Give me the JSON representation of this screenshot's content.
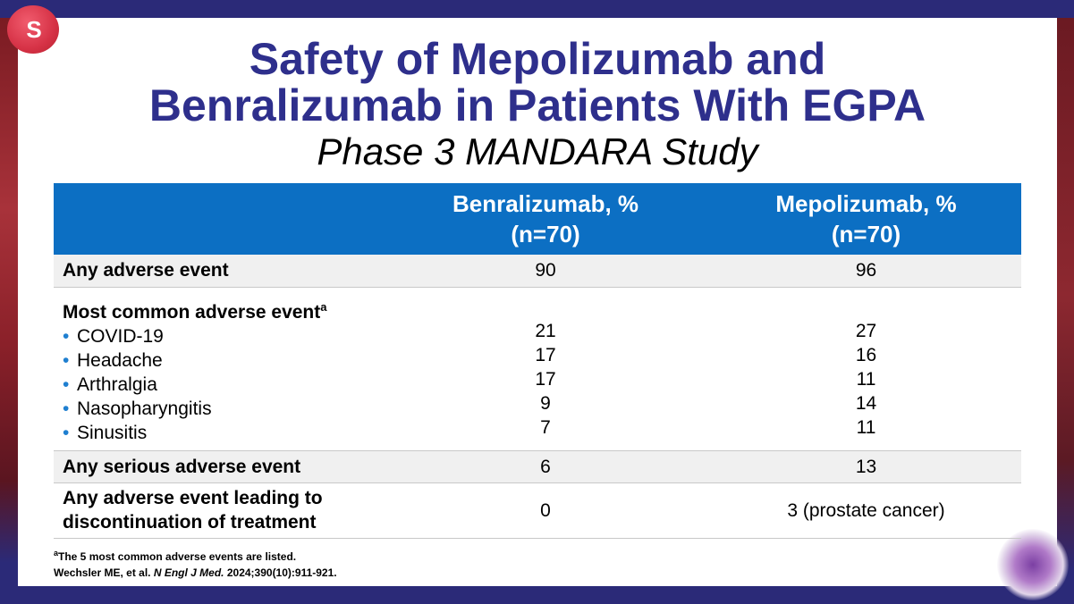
{
  "slide": {
    "title_line1": "Safety of Mepolizumab and",
    "title_line2": "Benralizumab in Patients With EGPA",
    "subtitle": "Phase 3 MANDARA Study",
    "logo_icon": "logo-s-icon",
    "decor_icon": "eosinophil-cell-icon"
  },
  "table": {
    "headers": {
      "benralizumab_line1": "Benralizumab, %",
      "benralizumab_line2": "(n=70)",
      "mepolizumab_line1": "Mepolizumab, %",
      "mepolizumab_line2": "(n=70)"
    },
    "any_adverse": {
      "label": "Any adverse event",
      "benralizumab": "90",
      "mepolizumab": "96"
    },
    "most_common": {
      "label": "Most common adverse event",
      "label_sup": "a",
      "items": [
        {
          "label": "COVID-19",
          "benralizumab": "21",
          "mepolizumab": "27"
        },
        {
          "label": "Headache",
          "benralizumab": "17",
          "mepolizumab": "16"
        },
        {
          "label": "Arthralgia",
          "benralizumab": "17",
          "mepolizumab": "11"
        },
        {
          "label": "Nasopharyngitis",
          "benralizumab": "9",
          "mepolizumab": "14"
        },
        {
          "label": "Sinusitis",
          "benralizumab": "7",
          "mepolizumab": "11"
        }
      ]
    },
    "serious": {
      "label": "Any serious adverse event",
      "benralizumab": "6",
      "mepolizumab": "13"
    },
    "discontinuation": {
      "label_line1": "Any adverse event leading to",
      "label_line2": "discontinuation of treatment",
      "benralizumab": "0",
      "mepolizumab": "3 (prostate cancer)"
    }
  },
  "footnote": {
    "sup": "a",
    "line1": "The 5 most common adverse events are listed.",
    "citation_authors": "Wechsler ME, et al. ",
    "citation_journal": "N Engl J Med.",
    "citation_rest": " 2024;390(10):911-921."
  },
  "colors": {
    "frame": "#2b2a78",
    "title": "#2e2f8c",
    "header_bg": "#0c6fc3",
    "row_shade": "#f0f0f0",
    "bullet": "#1f7fd0"
  }
}
